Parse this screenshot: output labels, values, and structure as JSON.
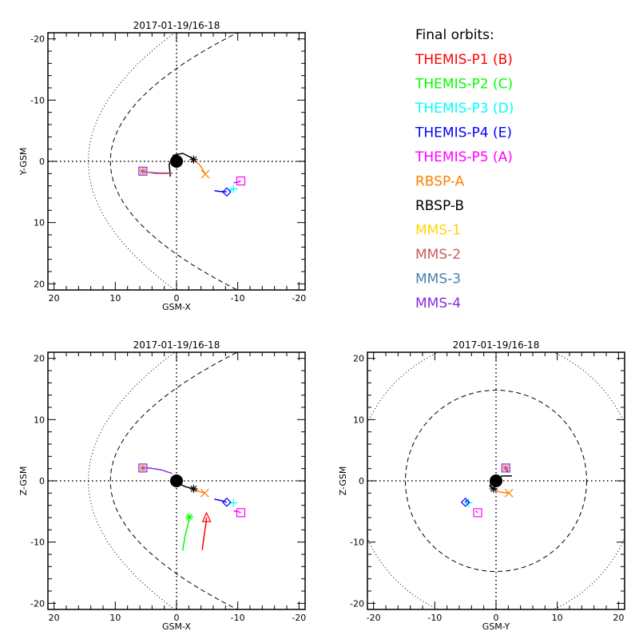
{
  "legend": {
    "title": "Final orbits:",
    "items": [
      {
        "label": "THEMIS-P1 (B)",
        "color": "#ff0000"
      },
      {
        "label": "THEMIS-P2 (C)",
        "color": "#00ff00"
      },
      {
        "label": "THEMIS-P3 (D)",
        "color": "#00ffff"
      },
      {
        "label": "THEMIS-P4 (E)",
        "color": "#0000ff"
      },
      {
        "label": "THEMIS-P5 (A)",
        "color": "#ff00ff"
      },
      {
        "label": "RBSP-A",
        "color": "#ff8000"
      },
      {
        "label": "RBSP-B",
        "color": "#000000"
      },
      {
        "label": "MMS-1",
        "color": "#ffd700"
      },
      {
        "label": "MMS-2",
        "color": "#cd5c5c"
      },
      {
        "label": "MMS-3",
        "color": "#4682b4"
      },
      {
        "label": "MMS-4",
        "color": "#8a2be2"
      }
    ]
  },
  "chart_data": [
    {
      "type": "scatter",
      "title": "2017-01-19/16-18",
      "xlabel": "GSM-X",
      "ylabel": "Y-GSM",
      "xlim": [
        21,
        -21
      ],
      "ylim": [
        21,
        -21
      ],
      "xticks": [
        "20",
        "10",
        "0",
        "-10",
        "-20"
      ],
      "yticks": [
        "-20",
        "-10",
        "0",
        "10",
        "20"
      ],
      "xtick_values": [
        20,
        10,
        0,
        -10,
        -20
      ],
      "ytick_values": [
        -20,
        -10,
        0,
        10,
        20
      ],
      "boundaries": "parabolic",
      "series": [
        {
          "name": "THEMIS-P3 (D)",
          "marker": "plus",
          "color": "#00ffff",
          "x": -9.3,
          "y": 4.5,
          "track": [
            [
              -8.5,
              4.9
            ],
            [
              -9.3,
              4.5
            ]
          ]
        },
        {
          "name": "THEMIS-P4 (E)",
          "marker": "diamond",
          "color": "#0000ff",
          "x": -8.2,
          "y": 5.0,
          "track": [
            [
              -6.2,
              4.8
            ],
            [
              -7.0,
              4.9
            ],
            [
              -8.2,
              5.0
            ]
          ]
        },
        {
          "name": "THEMIS-P5 (A)",
          "marker": "square",
          "color": "#ff00ff",
          "x": -10.5,
          "y": 3.2,
          "track": [
            [
              -9.3,
              3.5
            ],
            [
              -10.0,
              3.4
            ],
            [
              -10.5,
              3.2
            ]
          ]
        },
        {
          "name": "RBSP-A",
          "marker": "x",
          "color": "#ff8000",
          "x": -4.7,
          "y": 2.1,
          "track": [
            [
              -2.8,
              -0.3
            ],
            [
              -3.8,
              0.6
            ],
            [
              -4.3,
              1.4
            ],
            [
              -4.7,
              2.1
            ]
          ]
        },
        {
          "name": "RBSP-B",
          "marker": "asterisk",
          "color": "#000000",
          "x": -2.8,
          "y": -0.3,
          "track": [
            [
              1.0,
              2.5
            ],
            [
              1.2,
              0.5
            ],
            [
              0.5,
              -1.0
            ],
            [
              -1.0,
              -1.3
            ],
            [
              -2.2,
              -0.7
            ],
            [
              -2.8,
              -0.3
            ]
          ]
        },
        {
          "name": "MMS-4",
          "marker": "square",
          "color": "#8a2be2",
          "x": 5.5,
          "y": 1.6,
          "track": [
            [
              0.7,
              1.9
            ],
            [
              3.0,
              1.9
            ],
            [
              4.5,
              1.8
            ],
            [
              5.5,
              1.6
            ]
          ]
        },
        {
          "name": "MMS-2",
          "marker": "asterisk",
          "color": "#cd5c5c",
          "x": 5.5,
          "y": 1.6,
          "track": [
            [
              0.7,
              2.0
            ],
            [
              3.5,
              2.0
            ],
            [
              5.5,
              1.6
            ]
          ]
        }
      ]
    },
    {
      "type": "scatter",
      "title": "2017-01-19/16-18",
      "xlabel": "GSM-X",
      "ylabel": "Z-GSM",
      "xlim": [
        21,
        -21
      ],
      "ylim": [
        -21,
        21
      ],
      "xticks": [
        "20",
        "10",
        "0",
        "-10",
        "-20"
      ],
      "yticks": [
        "20",
        "10",
        "0",
        "-10",
        "-20"
      ],
      "xtick_values": [
        20,
        10,
        0,
        -10,
        -20
      ],
      "ytick_values": [
        20,
        10,
        0,
        -10,
        -20
      ],
      "boundaries": "parabolic",
      "series": [
        {
          "name": "THEMIS-P1 (B)",
          "marker": "triangle",
          "color": "#ff0000",
          "x": -4.9,
          "y": -6.0,
          "track": [
            [
              -4.2,
              -11.3
            ],
            [
              -4.5,
              -9.0
            ],
            [
              -4.8,
              -7.0
            ],
            [
              -4.9,
              -6.0
            ]
          ]
        },
        {
          "name": "THEMIS-P2 (C)",
          "marker": "asterisk",
          "color": "#00ff00",
          "x": -2.1,
          "y": -5.9,
          "track": [
            [
              -1.0,
              -11.4
            ],
            [
              -1.4,
              -9.0
            ],
            [
              -1.9,
              -7.0
            ],
            [
              -2.1,
              -5.9
            ]
          ]
        },
        {
          "name": "THEMIS-P3 (D)",
          "marker": "plus",
          "color": "#00ffff",
          "x": -9.3,
          "y": -3.6,
          "track": [
            [
              -8.6,
              -3.5
            ],
            [
              -9.3,
              -3.6
            ]
          ]
        },
        {
          "name": "THEMIS-P4 (E)",
          "marker": "diamond",
          "color": "#0000ff",
          "x": -8.2,
          "y": -3.5,
          "track": [
            [
              -6.2,
              -3.0
            ],
            [
              -7.2,
              -3.2
            ],
            [
              -8.2,
              -3.5
            ]
          ]
        },
        {
          "name": "THEMIS-P5 (A)",
          "marker": "square",
          "color": "#ff00ff",
          "x": -10.5,
          "y": -5.2,
          "track": [
            [
              -9.3,
              -4.9
            ],
            [
              -10.0,
              -5.0
            ],
            [
              -10.5,
              -5.2
            ]
          ]
        },
        {
          "name": "RBSP-A",
          "marker": "x",
          "color": "#ff8000",
          "x": -4.6,
          "y": -2.0,
          "track": [
            [
              -2.8,
              -1.3
            ],
            [
              -3.6,
              -1.7
            ],
            [
              -4.6,
              -2.0
            ]
          ]
        },
        {
          "name": "RBSP-B",
          "marker": "asterisk",
          "color": "#000000",
          "x": -2.8,
          "y": -1.3,
          "track": [
            [
              0.6,
              0.6
            ],
            [
              0.9,
              0.2
            ],
            [
              -0.6,
              -0.6
            ],
            [
              -1.6,
              -1.0
            ],
            [
              -2.8,
              -1.3
            ]
          ]
        },
        {
          "name": "MMS-4",
          "marker": "square",
          "color": "#8a2be2",
          "x": 5.5,
          "y": 2.1,
          "track": [
            [
              0.7,
              1.2
            ],
            [
              2.5,
              1.8
            ],
            [
              4.5,
              2.1
            ],
            [
              5.5,
              2.1
            ]
          ]
        },
        {
          "name": "MMS-2",
          "marker": "asterisk",
          "color": "#cd5c5c",
          "x": 5.5,
          "y": 2.1,
          "track": []
        }
      ]
    },
    {
      "type": "scatter",
      "title": "2017-01-19/16-18",
      "xlabel": "GSM-Y",
      "ylabel": "Z-GSM",
      "xlim": [
        -21,
        21
      ],
      "ylim": [
        -21,
        21
      ],
      "xticks": [
        "-20",
        "-10",
        "0",
        "10",
        "20"
      ],
      "yticks": [
        "20",
        "10",
        "0",
        "-10",
        "-20"
      ],
      "xtick_values": [
        -20,
        -10,
        0,
        10,
        20
      ],
      "ytick_values": [
        20,
        10,
        0,
        -10,
        -20
      ],
      "boundaries": "circular",
      "series": [
        {
          "name": "THEMIS-P3 (D)",
          "marker": "plus",
          "color": "#00ffff",
          "x": -4.5,
          "y": -3.6,
          "track": [
            [
              -4.8,
              -3.4
            ],
            [
              -4.5,
              -3.6
            ]
          ]
        },
        {
          "name": "THEMIS-P4 (E)",
          "marker": "diamond",
          "color": "#0000ff",
          "x": -5.0,
          "y": -3.5,
          "track": [
            [
              -4.8,
              -3.2
            ],
            [
              -5.0,
              -3.5
            ]
          ]
        },
        {
          "name": "THEMIS-P5 (A)",
          "marker": "square",
          "color": "#ff00ff",
          "x": -3.0,
          "y": -5.2,
          "track": [
            [
              -3.3,
              -4.9
            ],
            [
              -3.0,
              -5.2
            ]
          ]
        },
        {
          "name": "RBSP-A",
          "marker": "x",
          "color": "#ff8000",
          "x": 2.1,
          "y": -2.0,
          "track": [
            [
              -0.3,
              -1.3
            ],
            [
              0.5,
              -1.8
            ],
            [
              1.3,
              -1.9
            ],
            [
              2.1,
              -2.0
            ]
          ]
        },
        {
          "name": "RBSP-B",
          "marker": "asterisk",
          "color": "#000000",
          "x": -0.4,
          "y": -1.3,
          "track": [
            [
              2.6,
              0.8
            ],
            [
              1.0,
              0.8
            ],
            [
              -0.8,
              -0.2
            ],
            [
              -1.0,
              -0.9
            ],
            [
              -0.4,
              -1.3
            ]
          ]
        },
        {
          "name": "MMS-4",
          "marker": "square",
          "color": "#8a2be2",
          "x": 1.6,
          "y": 2.1,
          "track": [
            [
              1.9,
              1.5
            ],
            [
              1.6,
              2.1
            ]
          ]
        },
        {
          "name": "MMS-2",
          "marker": "asterisk",
          "color": "#cd5c5c",
          "x": 1.6,
          "y": 2.1,
          "track": []
        }
      ]
    }
  ]
}
